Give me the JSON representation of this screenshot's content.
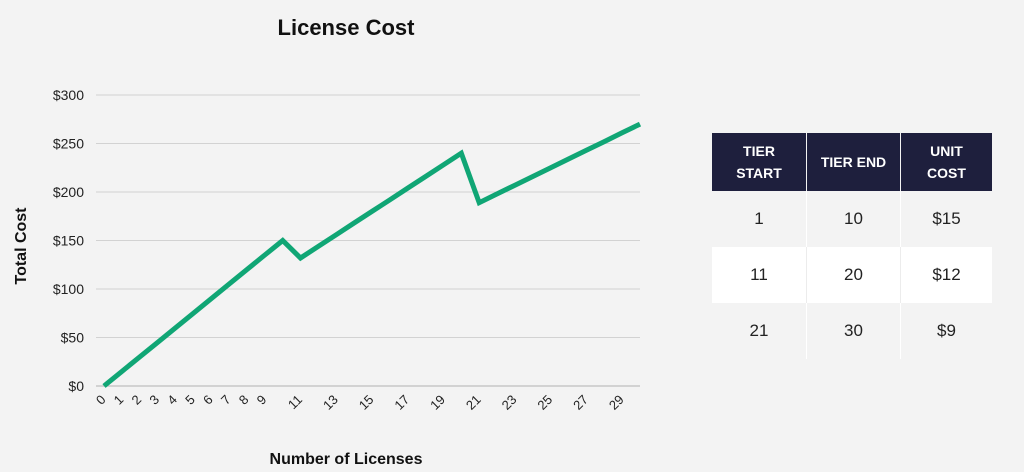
{
  "colors": {
    "series": "#10a675",
    "table_header": "#1e1f3d",
    "background": "#f3f3f3"
  },
  "chart_data": {
    "type": "line",
    "title": "License Cost",
    "xlabel": "Number of Licenses",
    "ylabel": "Total Cost",
    "x": [
      0,
      1,
      2,
      3,
      4,
      5,
      6,
      7,
      8,
      9,
      10,
      11,
      12,
      13,
      14,
      15,
      16,
      17,
      18,
      19,
      20,
      21,
      22,
      23,
      24,
      25,
      26,
      27,
      28,
      29,
      30
    ],
    "series": [
      {
        "name": "",
        "values": [
          0,
          15,
          30,
          45,
          60,
          75,
          90,
          105,
          120,
          135,
          150,
          132,
          144,
          156,
          168,
          180,
          192,
          204,
          216,
          228,
          240,
          189,
          198,
          207,
          216,
          225,
          234,
          243,
          252,
          261,
          270
        ]
      }
    ],
    "x_tick_labels": [
      "0",
      "1",
      "2",
      "3",
      "4",
      "5",
      "6",
      "7",
      "8",
      "9",
      "11",
      "13",
      "15",
      "17",
      "19",
      "21",
      "23",
      "25",
      "27",
      "29"
    ],
    "y_tick_labels": [
      "$0",
      "$50",
      "$100",
      "$150",
      "$200",
      "$250",
      "$300"
    ],
    "y_ticks": [
      0,
      50,
      100,
      150,
      200,
      250,
      300
    ],
    "ylim": [
      0,
      300
    ],
    "xlim": [
      0,
      30
    ],
    "grid": true,
    "legend": "none"
  },
  "table": {
    "headers": [
      [
        "TIER",
        "START"
      ],
      [
        "TIER END"
      ],
      [
        "UNIT",
        "COST"
      ]
    ],
    "rows": [
      [
        "1",
        "10",
        "$15"
      ],
      [
        "11",
        "20",
        "$12"
      ],
      [
        "21",
        "30",
        "$9"
      ]
    ]
  }
}
